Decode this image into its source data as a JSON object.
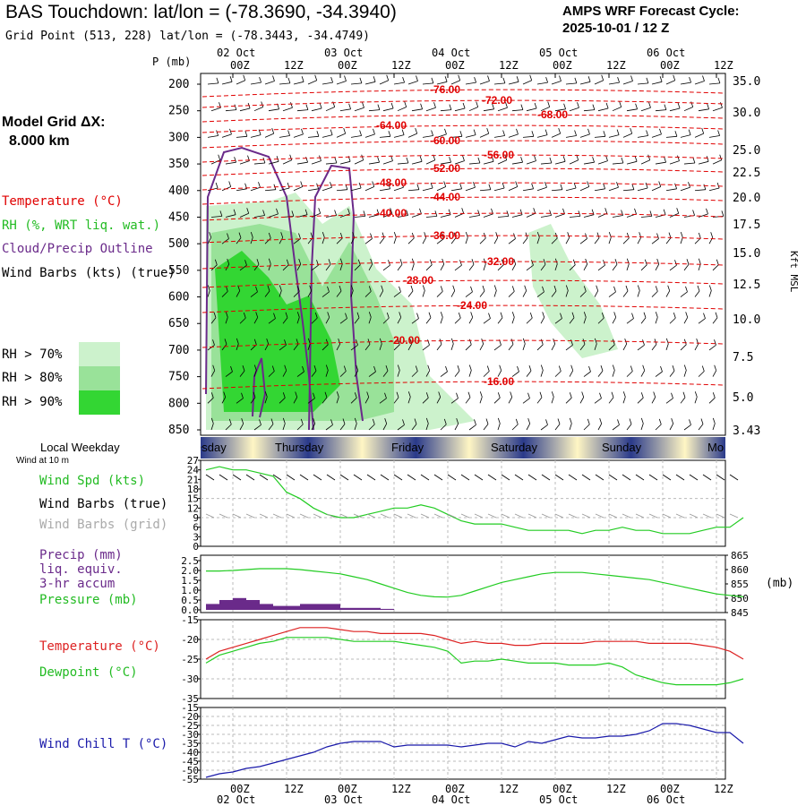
{
  "header": {
    "title": "BAS Touchdown:  lat/lon = (-78.3690, -34.3940)",
    "grid_point": "Grid Point (513, 228) lat/lon = (-78.3443, -34.4749)",
    "cycle_label": "AMPS WRF Forecast Cycle:",
    "cycle_value": "2025-10-01 / 12  Z"
  },
  "left_panel": {
    "p_unit": "P (mb)",
    "grid_label": "Model Grid ΔX:",
    "grid_value": "8.000 km",
    "legend_temperature": "Temperature (°C)",
    "legend_rh": "RH (%, WRT liq. wat.)",
    "legend_cloud": "Cloud/Precip Outline",
    "legend_wind": "Wind Barbs (kts) (true)",
    "rh_levels": [
      "RH > 70%",
      "RH > 80%",
      "RH > 90%"
    ],
    "colors": {
      "temperature": "#e00000",
      "rh": "#22bb22",
      "cloud": "#6a2a8a",
      "wind": "#000000"
    }
  },
  "right_axis_label": "Kft MSL",
  "time_axis": {
    "top_dates": [
      "02 Oct",
      "03 Oct",
      "04 Oct",
      "05 Oct",
      "06 Oct"
    ],
    "hours": [
      "00Z",
      "12Z",
      "00Z",
      "12Z",
      "00Z",
      "12Z",
      "00Z",
      "12Z",
      "00Z",
      "12Z"
    ],
    "bottom_dates": [
      "02 Oct",
      "03 Oct",
      "04 Oct",
      "05 Oct",
      "06 Oct"
    ]
  },
  "weekday_bar": {
    "label": "Local Weekday",
    "days": [
      "esday",
      "Thursday",
      "Friday",
      "Saturday",
      "Sunday",
      "Mo"
    ]
  },
  "wind_panel": {
    "caption": "Wind at 10 m",
    "spd_label": "Wind Spd (kts)",
    "barbs_true": "Wind Barbs (true)",
    "barbs_grid": "Wind Barbs (grid)",
    "yticks": [
      "27",
      "24",
      "21",
      "18",
      "15",
      "12",
      "9",
      "6",
      "3",
      "0"
    ]
  },
  "precip_panel": {
    "precip_label": "Precip (mm)",
    "liq_label": "liq. equiv.",
    "accum_label": "3-hr accum",
    "pressure_label": "Pressure (mb)",
    "unit_right": "(mb)",
    "left_ticks": [
      "2.5",
      "2.0",
      "1.5",
      "1.0",
      "0.5",
      "0.0"
    ],
    "right_ticks": [
      "865",
      "860",
      "855",
      "850",
      "845"
    ]
  },
  "temp_panel": {
    "temp_label": "Temperature (°C)",
    "dew_label": "Dewpoint (°C)",
    "yticks": [
      "-15",
      "-20",
      "-25",
      "-30",
      "-35"
    ]
  },
  "chill_panel": {
    "label": "Wind Chill T (°C)",
    "yticks": [
      "-15",
      "-20",
      "-25",
      "-30",
      "-35",
      "-40",
      "-45",
      "-50",
      "-55"
    ]
  },
  "chart_data": {
    "type": "line",
    "x_hours": [
      0,
      3,
      6,
      9,
      12,
      15,
      18,
      21,
      24,
      27,
      30,
      33,
      36,
      39,
      42,
      45,
      48,
      51,
      54,
      57,
      60,
      63,
      66,
      69,
      72,
      75,
      78,
      81,
      84,
      87,
      90,
      93,
      96,
      99,
      102,
      105,
      108,
      111,
      114,
      117,
      120
    ],
    "cross_section": {
      "pressure_levels": [
        "200",
        "250",
        "300",
        "350",
        "400",
        "450",
        "500",
        "550",
        "600",
        "650",
        "700",
        "750",
        "800",
        "850"
      ],
      "height_labels": [
        "35.0",
        "30.0",
        "25.0",
        "22.5",
        "20.0",
        "17.5",
        "15.0",
        "12.5",
        "10.0",
        "7.5",
        "5.0",
        "3.43"
      ],
      "temperature_contours": [
        "-76.00",
        "-72.00",
        "-68.00",
        "-64.00",
        "-60.00",
        "-56.00",
        "-52.00",
        "-48.00",
        "-44.00",
        "-40.00",
        "-36.00",
        "-32.00",
        "-28.00",
        "-24.00",
        "-20.00",
        "-16.00"
      ]
    },
    "series": [
      {
        "name": "Wind Spd (kts)",
        "color": "#22cc22",
        "values": [
          24,
          25,
          24,
          24,
          23,
          22,
          17,
          15,
          12,
          10,
          9,
          9,
          10,
          11,
          12,
          12,
          13,
          12,
          10,
          8,
          7,
          7,
          7,
          6,
          5,
          5,
          5,
          5,
          4,
          5,
          5,
          6,
          5,
          5,
          4,
          4,
          4,
          5,
          6,
          6,
          9
        ]
      },
      {
        "name": "Precip (mm)",
        "color": "#6a2a8a",
        "type": "bar",
        "values": [
          0.3,
          0.5,
          0.6,
          0.5,
          0.3,
          0.2,
          0.2,
          0.3,
          0.3,
          0.3,
          0.1,
          0.1,
          0.1,
          0.05
        ]
      },
      {
        "name": "Pressure (mb)",
        "color": "#22cc22",
        "values": [
          859.5,
          859.5,
          859.7,
          860,
          860.3,
          860.3,
          860.3,
          860,
          859.5,
          859,
          858.5,
          857.5,
          856.5,
          855,
          853.5,
          852,
          851,
          850.5,
          850.4,
          851,
          852.5,
          854,
          855.5,
          856.5,
          857.5,
          858.5,
          859,
          859,
          859,
          858.5,
          858,
          857.5,
          857,
          856.5,
          855.5,
          854.5,
          853.5,
          852.5,
          851.5,
          851,
          850.5
        ]
      },
      {
        "name": "Temperature (°C)",
        "color": "#dd2222",
        "values": [
          -25,
          -23,
          -22,
          -21,
          -20,
          -19,
          -18,
          -17,
          -17,
          -17,
          -17.5,
          -18,
          -18,
          -18.5,
          -18.5,
          -18.5,
          -18.5,
          -19,
          -20,
          -21,
          -20.5,
          -21,
          -21,
          -21.5,
          -21.5,
          -21,
          -21,
          -21,
          -21,
          -20.5,
          -20.5,
          -20.5,
          -20.5,
          -21,
          -21,
          -21,
          -21,
          -21.5,
          -22,
          -23,
          -25
        ]
      },
      {
        "name": "Dewpoint (°C)",
        "color": "#22cc22",
        "values": [
          -26,
          -24,
          -23,
          -22,
          -21,
          -20.5,
          -19.5,
          -19.5,
          -19.5,
          -19.5,
          -20,
          -20.5,
          -20.5,
          -20.5,
          -20.5,
          -21,
          -21.5,
          -22,
          -23,
          -26,
          -25.5,
          -25.5,
          -25,
          -25.5,
          -26,
          -26,
          -26,
          -26.5,
          -26.5,
          -26.5,
          -26,
          -27,
          -29,
          -30,
          -31,
          -31.5,
          -31.5,
          -31.5,
          -31.5,
          -31,
          -30
        ]
      },
      {
        "name": "Wind Chill T (°C)",
        "color": "#1a1aaa",
        "values": [
          -54,
          -52,
          -51,
          -49,
          -48,
          -46,
          -44,
          -42,
          -40,
          -37,
          -35,
          -34,
          -34,
          -34,
          -37,
          -36,
          -36,
          -36,
          -36,
          -37,
          -36,
          -35,
          -35,
          -37,
          -34,
          -35,
          -33,
          -31,
          -32,
          -32,
          -31,
          -31,
          -30,
          -28,
          -24,
          -24,
          -25,
          -27,
          -29,
          -29,
          -35
        ]
      }
    ],
    "ylim_wind": [
      0,
      27
    ],
    "ylim_precip": [
      0,
      2.5
    ],
    "ylim_pressure": [
      845,
      865
    ],
    "ylim_temp": [
      -35,
      -15
    ],
    "ylim_chill": [
      -55,
      -15
    ]
  }
}
